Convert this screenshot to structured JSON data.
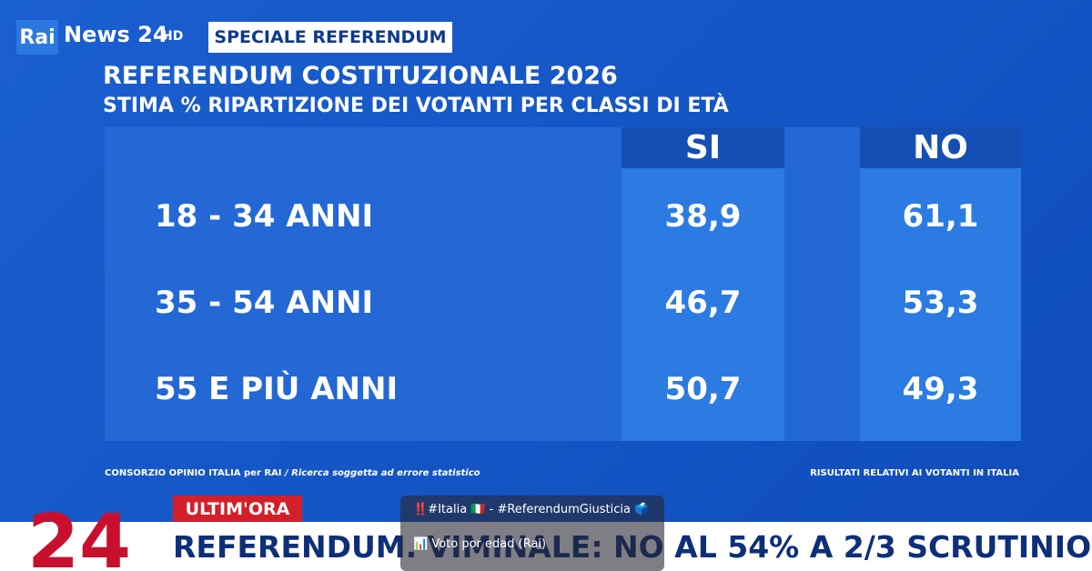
{
  "logo": {
    "brand": "Rai",
    "channel": "News 24",
    "quality": "HD"
  },
  "tag": "SPECIALE REFERENDUM",
  "header": {
    "title": "REFERENDUM COSTITUZIONALE 2026",
    "subtitle": "STIMA % RIPARTIZIONE DEI VOTANTI PER CLASSI DI ETÀ"
  },
  "table": {
    "columns": [
      "SI",
      "NO"
    ],
    "rows": [
      [
        "18 - 34 ANNI",
        "38,9",
        "61,1"
      ],
      [
        "35 - 54 ANNI",
        "46,7",
        "53,3"
      ],
      [
        "55 E PIÙ ANNI",
        "50,7",
        "49,3"
      ]
    ]
  },
  "footer": {
    "source": "CONSORZIO OPINIO ITALIA per RAI",
    "note": "/ Ricerca soggetta ad errore statistico",
    "scope": "RISULTATI RELATIVI AI VOTANTI IN ITALIA"
  },
  "ticker": {
    "badge": "ULTIM'ORA",
    "channel_mark": "24",
    "headline": "REFERENDUM. VIMINALE: NO AL 54% A 2/3 SCRUTINIO"
  },
  "overlay": {
    "line1": "‼️#Italia 🇮🇹 - #ReferendumGiusticia 🗳️",
    "line2": "📊 Voto por edad (Rai)"
  }
}
